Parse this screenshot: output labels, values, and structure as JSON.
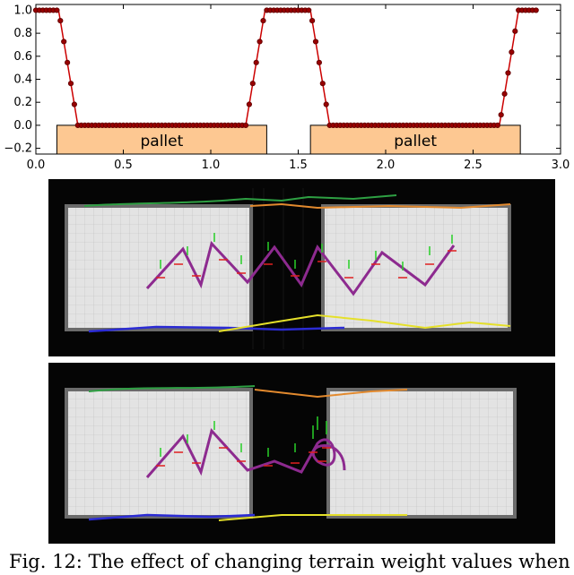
{
  "chart_data": {
    "type": "line",
    "title": "",
    "xlabel": "",
    "ylabel": "",
    "xlim": [
      0.0,
      3.0
    ],
    "ylim": [
      -0.25,
      1.05
    ],
    "xticks": [
      0.0,
      0.5,
      1.0,
      1.5,
      2.0,
      2.5,
      3.0
    ],
    "xtick_labels": [
      "0.0",
      "0.5",
      "1.0",
      "1.5",
      "2.0",
      "2.5",
      "3.0"
    ],
    "yticks": [
      -0.2,
      0.0,
      0.2,
      0.4,
      0.6,
      0.8,
      1.0
    ],
    "ytick_labels": [
      "−0.2",
      "0.0",
      "0.2",
      "0.4",
      "0.6",
      "0.8",
      "1.0"
    ],
    "grid": false,
    "series": [
      {
        "name": "",
        "color": "#cc0000",
        "marker_color": "#990000",
        "points": [
          [
            0.0,
            1.0
          ],
          [
            0.13,
            1.0
          ],
          [
            0.24,
            0.0
          ],
          [
            1.2,
            0.0
          ],
          [
            1.31,
            1.0
          ],
          [
            1.57,
            1.0
          ],
          [
            1.68,
            0.0
          ],
          [
            2.65,
            0.0
          ],
          [
            2.76,
            1.0
          ],
          [
            2.87,
            1.0
          ]
        ]
      }
    ],
    "annotations": [
      {
        "label": "pallet",
        "x0": 0.12,
        "x1": 1.32,
        "y0": -0.27,
        "y1": 0.0,
        "fill": "#fdc892"
      },
      {
        "label": "pallet",
        "x0": 1.57,
        "x1": 2.77,
        "y0": -0.27,
        "y1": 0.0,
        "fill": "#fdc892"
      }
    ]
  },
  "figures": {
    "top_panel_name": "terrain-map-top",
    "bottom_panel_name": "terrain-map-bottom"
  },
  "caption": "Fig. 12: The effect of changing terrain weight values when"
}
